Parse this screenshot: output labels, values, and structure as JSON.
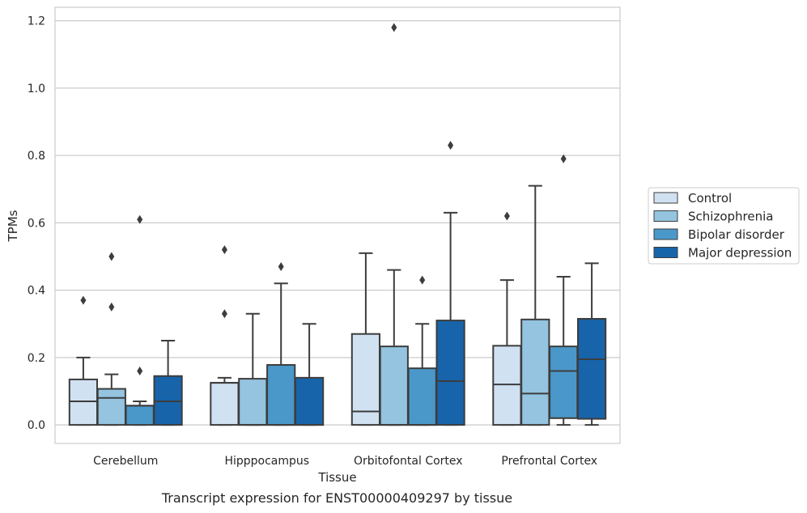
{
  "caption": "Transcript expression for ENST00000409297 by tissue",
  "chart_data": {
    "type": "boxplot",
    "title": "",
    "xlabel": "Tissue",
    "ylabel": "TPMs",
    "ylim": [
      -0.055,
      1.24
    ],
    "yticks": [
      0.0,
      0.2,
      0.4,
      0.6,
      0.8,
      1.0,
      1.2
    ],
    "ytick_labels": [
      "0.0",
      "0.2",
      "0.4",
      "0.6",
      "0.8",
      "1.0",
      "1.2"
    ],
    "grid": true,
    "legend_position": "right, outside",
    "categories": [
      "Cerebellum",
      "Hipppocampus",
      "Orbitofontal Cortex",
      "Prefrontal Cortex"
    ],
    "series": [
      {
        "name": "Control",
        "color": "#d0e1f2",
        "boxes": [
          {
            "q1": 0.0,
            "median": 0.07,
            "q3": 0.135,
            "whisker_low": 0.0,
            "whisker_high": 0.2,
            "outliers": [
              0.37
            ]
          },
          {
            "q1": 0.0,
            "median": 0.125,
            "q3": 0.125,
            "whisker_low": 0.0,
            "whisker_high": 0.14,
            "outliers": [
              0.33,
              0.52
            ]
          },
          {
            "q1": 0.0,
            "median": 0.04,
            "q3": 0.27,
            "whisker_low": 0.0,
            "whisker_high": 0.51,
            "outliers": []
          },
          {
            "q1": 0.0,
            "median": 0.12,
            "q3": 0.235,
            "whisker_low": 0.0,
            "whisker_high": 0.43,
            "outliers": [
              0.62
            ]
          }
        ]
      },
      {
        "name": "Schizophrenia",
        "color": "#94c4df",
        "boxes": [
          {
            "q1": 0.0,
            "median": 0.08,
            "q3": 0.107,
            "whisker_low": 0.0,
            "whisker_high": 0.15,
            "outliers": [
              0.35,
              0.5
            ]
          },
          {
            "q1": 0.0,
            "median": 0.0,
            "q3": 0.137,
            "whisker_low": 0.0,
            "whisker_high": 0.33,
            "outliers": []
          },
          {
            "q1": 0.0,
            "median": 0.0,
            "q3": 0.233,
            "whisker_low": 0.0,
            "whisker_high": 0.46,
            "outliers": [
              1.18
            ]
          },
          {
            "q1": 0.0,
            "median": 0.093,
            "q3": 0.313,
            "whisker_low": 0.0,
            "whisker_high": 0.71,
            "outliers": []
          }
        ]
      },
      {
        "name": "Bipolar disorder",
        "color": "#4a98c9",
        "boxes": [
          {
            "q1": 0.0,
            "median": 0.057,
            "q3": 0.057,
            "whisker_low": 0.0,
            "whisker_high": 0.07,
            "outliers": [
              0.16,
              0.61
            ]
          },
          {
            "q1": 0.0,
            "median": 0.0,
            "q3": 0.178,
            "whisker_low": 0.0,
            "whisker_high": 0.42,
            "outliers": [
              0.47
            ]
          },
          {
            "q1": 0.0,
            "median": 0.0,
            "q3": 0.168,
            "whisker_low": 0.0,
            "whisker_high": 0.3,
            "outliers": [
              0.43
            ]
          },
          {
            "q1": 0.02,
            "median": 0.16,
            "q3": 0.233,
            "whisker_low": 0.0,
            "whisker_high": 0.44,
            "outliers": [
              0.79
            ]
          }
        ]
      },
      {
        "name": "Major depression",
        "color": "#1764ab",
        "boxes": [
          {
            "q1": 0.0,
            "median": 0.07,
            "q3": 0.145,
            "whisker_low": 0.0,
            "whisker_high": 0.25,
            "outliers": []
          },
          {
            "q1": 0.0,
            "median": 0.0,
            "q3": 0.14,
            "whisker_low": 0.0,
            "whisker_high": 0.3,
            "outliers": []
          },
          {
            "q1": 0.0,
            "median": 0.13,
            "q3": 0.31,
            "whisker_low": 0.0,
            "whisker_high": 0.63,
            "outliers": [
              0.83
            ]
          },
          {
            "q1": 0.018,
            "median": 0.195,
            "q3": 0.315,
            "whisker_low": 0.0,
            "whisker_high": 0.48,
            "outliers": []
          }
        ]
      }
    ]
  }
}
